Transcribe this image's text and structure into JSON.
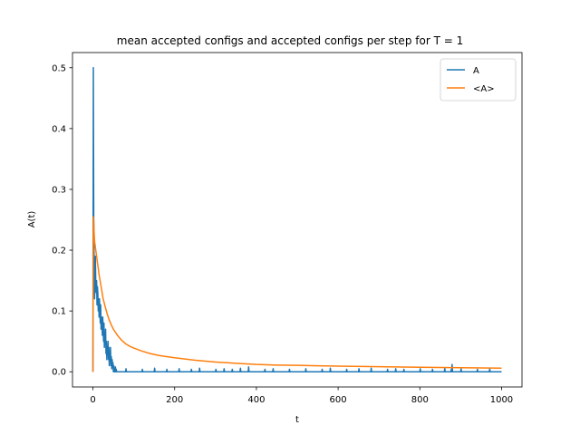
{
  "chart_data": {
    "type": "line",
    "title": "mean accepted configs and accepted configs per step for T = 1",
    "xlabel": "t",
    "ylabel": "A(t)",
    "xlim": [
      -50,
      1050
    ],
    "ylim": [
      -0.025,
      0.525
    ],
    "xticks": [
      0,
      200,
      400,
      600,
      800,
      1000
    ],
    "yticks": [
      0.0,
      0.1,
      0.2,
      0.3,
      0.4,
      0.5
    ],
    "xtick_labels": [
      "0",
      "200",
      "400",
      "600",
      "800",
      "1000"
    ],
    "ytick_labels": [
      "0.0",
      "0.1",
      "0.2",
      "0.3",
      "0.4",
      "0.5"
    ],
    "grid": false,
    "legend": "top-right",
    "series": [
      {
        "name": "A",
        "color": "#1f77b4",
        "x": [
          0,
          1,
          2,
          3,
          4,
          5,
          6,
          7,
          8,
          9,
          10,
          11,
          12,
          13,
          14,
          15,
          16,
          17,
          18,
          19,
          20,
          21,
          22,
          23,
          24,
          25,
          26,
          27,
          28,
          29,
          30,
          31,
          32,
          33,
          34,
          35,
          36,
          37,
          38,
          39,
          40,
          41,
          42,
          43,
          44,
          45,
          46,
          47,
          48,
          49,
          50,
          51,
          52,
          53,
          54,
          55,
          56,
          57,
          58,
          60,
          80,
          81,
          82,
          100,
          120,
          121,
          122,
          150,
          151,
          152,
          180,
          181,
          182,
          210,
          211,
          212,
          240,
          241,
          242,
          260,
          261,
          262,
          300,
          301,
          302,
          320,
          321,
          322,
          340,
          341,
          342,
          360,
          361,
          362,
          380,
          381,
          382,
          420,
          421,
          422,
          440,
          441,
          442,
          480,
          481,
          482,
          520,
          521,
          522,
          560,
          561,
          562,
          580,
          581,
          582,
          620,
          621,
          622,
          650,
          651,
          652,
          680,
          681,
          682,
          720,
          721,
          722,
          740,
          741,
          742,
          760,
          761,
          762,
          800,
          801,
          802,
          830,
          831,
          832,
          860,
          861,
          862,
          876,
          877,
          878,
          879,
          880,
          900,
          901,
          902,
          940,
          941,
          942,
          970,
          971,
          972,
          1000
        ],
        "y": [
          0.0,
          0.5,
          0.25,
          0.18,
          0.12,
          0.15,
          0.19,
          0.14,
          0.13,
          0.15,
          0.11,
          0.14,
          0.13,
          0.1,
          0.12,
          0.09,
          0.12,
          0.1,
          0.08,
          0.11,
          0.07,
          0.09,
          0.085,
          0.06,
          0.09,
          0.07,
          0.05,
          0.08,
          0.04,
          0.06,
          0.05,
          0.07,
          0.03,
          0.05,
          0.02,
          0.04,
          0.03,
          0.05,
          0.02,
          0.04,
          0.01,
          0.03,
          0.02,
          0.04,
          0.01,
          0.025,
          0.005,
          0.02,
          0.01,
          0.015,
          0.0,
          0.01,
          0.0,
          0.005,
          0.0,
          0.008,
          0.0,
          0.004,
          0.0,
          0.0,
          0.0,
          0.005,
          0.0,
          0.0,
          0.0,
          0.004,
          0.0,
          0.0,
          0.006,
          0.0,
          0.0,
          0.004,
          0.0,
          0.0,
          0.005,
          0.0,
          0.0,
          0.004,
          0.0,
          0.0,
          0.006,
          0.0,
          0.0,
          0.004,
          0.0,
          0.0,
          0.005,
          0.0,
          0.0,
          0.004,
          0.0,
          0.0,
          0.006,
          0.0,
          0.0,
          0.008,
          0.0,
          0.0,
          0.004,
          0.0,
          0.0,
          0.005,
          0.0,
          0.0,
          0.004,
          0.0,
          0.0,
          0.005,
          0.0,
          0.0,
          0.004,
          0.0,
          0.0,
          0.006,
          0.0,
          0.0,
          0.004,
          0.0,
          0.0,
          0.005,
          0.0,
          0.0,
          0.006,
          0.0,
          0.0,
          0.004,
          0.0,
          0.0,
          0.005,
          0.0,
          0.0,
          0.004,
          0.0,
          0.0,
          0.005,
          0.0,
          0.0,
          0.004,
          0.0,
          0.0,
          0.006,
          0.0,
          0.0,
          0.004,
          0.0,
          0.012,
          0.0,
          0.0,
          0.005,
          0.0,
          0.0,
          0.004,
          0.0,
          0.0,
          0.005,
          0.0,
          0.0
        ]
      },
      {
        "name": "<A>",
        "color": "#ff7f0e",
        "x": [
          0,
          1,
          2,
          3,
          4,
          5,
          6,
          8,
          10,
          12,
          15,
          20,
          25,
          30,
          35,
          40,
          45,
          50,
          60,
          70,
          80,
          90,
          100,
          120,
          140,
          160,
          180,
          200,
          250,
          300,
          350,
          400,
          450,
          500,
          550,
          600,
          700,
          800,
          900,
          1000
        ],
        "y": [
          0.0,
          0.255,
          0.245,
          0.228,
          0.215,
          0.21,
          0.205,
          0.195,
          0.185,
          0.175,
          0.16,
          0.14,
          0.12,
          0.107,
          0.095,
          0.085,
          0.077,
          0.07,
          0.06,
          0.052,
          0.046,
          0.042,
          0.039,
          0.034,
          0.03,
          0.027,
          0.025,
          0.023,
          0.019,
          0.016,
          0.014,
          0.012,
          0.011,
          0.0105,
          0.0098,
          0.0093,
          0.0083,
          0.0074,
          0.0067,
          0.006
        ]
      }
    ]
  }
}
